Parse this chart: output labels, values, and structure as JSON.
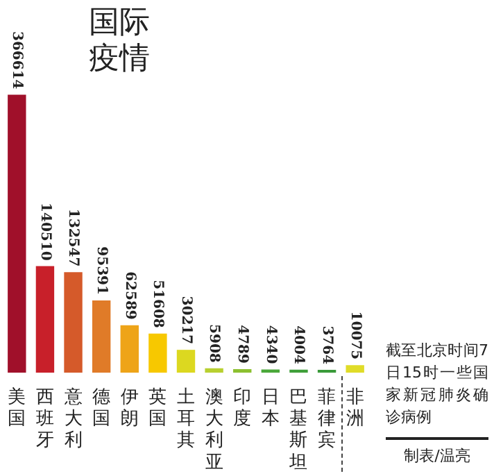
{
  "chart_data": {
    "type": "bar",
    "title": "国际疫情",
    "categories": [
      "美国",
      "西班牙",
      "意大利",
      "德国",
      "伊朗",
      "英国",
      "土耳其",
      "澳大利亚",
      "印度",
      "日本",
      "巴基斯坦",
      "菲律宾",
      "非洲"
    ],
    "values": [
      366614,
      140510,
      132547,
      95391,
      62589,
      51608,
      30217,
      5908,
      4789,
      4340,
      4004,
      3764,
      10075
    ],
    "colors": [
      "#a0102a",
      "#c8202a",
      "#d55a2a",
      "#e07b28",
      "#eea418",
      "#f7c800",
      "#dcd820",
      "#b8d030",
      "#8cc030",
      "#4aa83a",
      "#3f9f3a",
      "#3a9a3a",
      "#e0dc28"
    ],
    "data_labels": true,
    "annotations": [
      "截至北京时间7日15时一些国家新冠肺炎确诊病例",
      "制表/温亮"
    ]
  }
}
